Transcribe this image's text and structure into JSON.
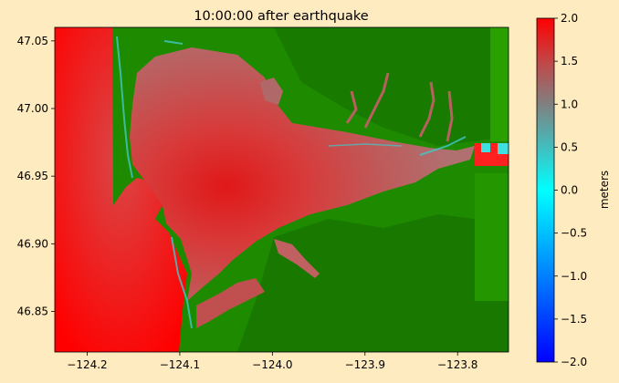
{
  "chart_data": {
    "type": "heatmap",
    "title": "10:00:00 after earthquake",
    "xlabel": "",
    "ylabel": "",
    "xlim": [
      -124.235,
      -123.745
    ],
    "ylim": [
      46.82,
      47.06
    ],
    "x_ticks": [
      -124.2,
      -124.1,
      -124.0,
      -123.9,
      -123.8
    ],
    "x_tick_labels": [
      "−124.2",
      "−124.1",
      "−124.0",
      "−123.9",
      "−123.8"
    ],
    "y_ticks": [
      46.85,
      46.9,
      46.95,
      47.0,
      47.05
    ],
    "y_tick_labels": [
      "46.85",
      "46.90",
      "46.95",
      "47.00",
      "47.05"
    ],
    "colorbar": {
      "label": "meters",
      "range": [
        -2.0,
        2.0
      ],
      "ticks": [
        -2.0,
        -1.5,
        -1.0,
        -0.5,
        0.0,
        0.5,
        1.0,
        1.5,
        2.0
      ],
      "tick_labels": [
        "−2.0",
        "−1.5",
        "−1.0",
        "−0.5",
        "0.0",
        "0.5",
        "1.0",
        "1.5",
        "2.0"
      ],
      "colors": [
        "#0000ff",
        "#00ffff",
        "#808080",
        "#ff0000"
      ]
    },
    "land_color": "#1e8a00",
    "offshore_color": "#ff0000",
    "grid": false
  }
}
